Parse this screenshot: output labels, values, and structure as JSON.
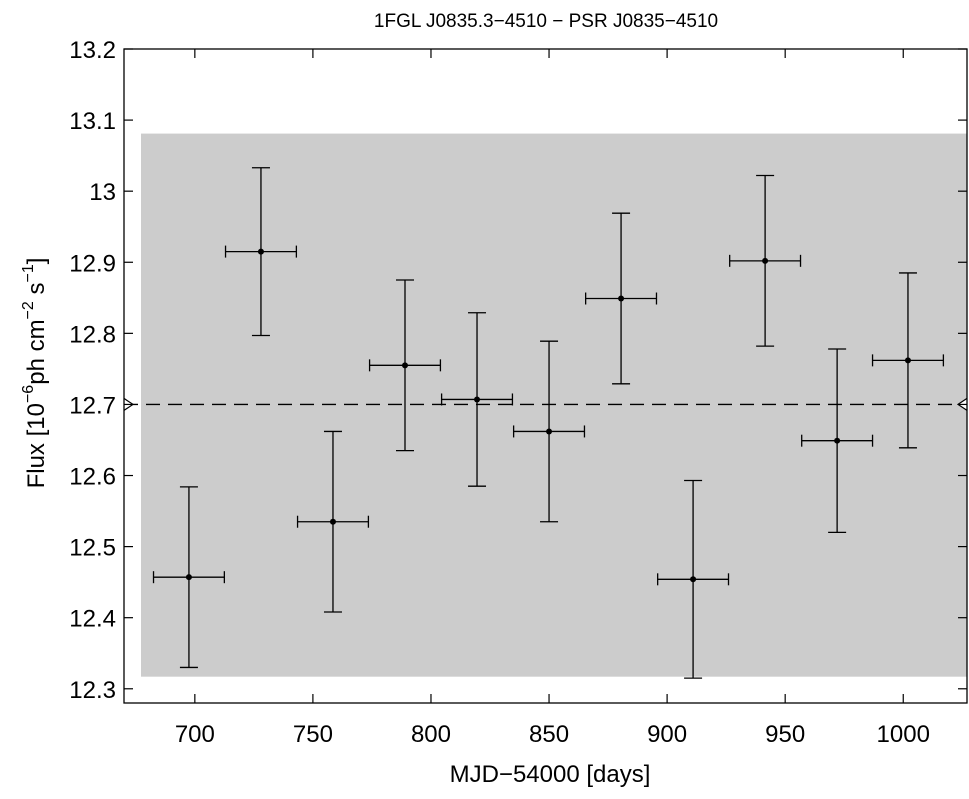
{
  "chart_data": {
    "type": "scatter",
    "title": "1FGL J0835.3−4510 − PSR J0835−4510",
    "xlabel": "MJD−54000 [days]",
    "ylabel": {
      "prefix": "Flux [10",
      "exp1": "−6",
      "mid": "ph cm",
      "exp2": "−2",
      "mid2": " s",
      "exp3": "−1",
      "suffix": "]"
    },
    "xlim": [
      670,
      1027
    ],
    "ylim": [
      12.28,
      13.2
    ],
    "xticks": [
      700,
      750,
      800,
      850,
      900,
      950,
      1000
    ],
    "xtick_labels": [
      "700",
      "750",
      "800",
      "850",
      "900",
      "950",
      "1000"
    ],
    "yticks": [
      12.3,
      12.4,
      12.5,
      12.6,
      12.7,
      12.8,
      12.9,
      13.0,
      13.1,
      13.2
    ],
    "ytick_labels": [
      "12.3",
      "12.4",
      "12.5",
      "12.6",
      "12.7",
      "12.8",
      "12.9",
      "13",
      "13.1",
      "13.2"
    ],
    "band": {
      "y_low": 12.317,
      "y_high": 13.081,
      "color": "#cccccc"
    },
    "mean_line": {
      "y": 12.7
    },
    "series": [
      {
        "x": [
          697.5,
          728,
          758.5,
          789,
          819.5,
          850,
          880.5,
          911,
          941.5,
          972,
          1002
        ],
        "y": [
          12.457,
          12.915,
          12.535,
          12.755,
          12.707,
          12.662,
          12.849,
          12.454,
          12.902,
          12.649,
          12.762
        ],
        "xerr": [
          15,
          15,
          15,
          15,
          15,
          15,
          15,
          15,
          15,
          15,
          15
        ],
        "yerr": [
          0.127,
          0.118,
          0.127,
          0.12,
          0.122,
          0.127,
          0.12,
          0.139,
          0.12,
          0.129,
          0.123
        ]
      }
    ],
    "grid": false
  }
}
